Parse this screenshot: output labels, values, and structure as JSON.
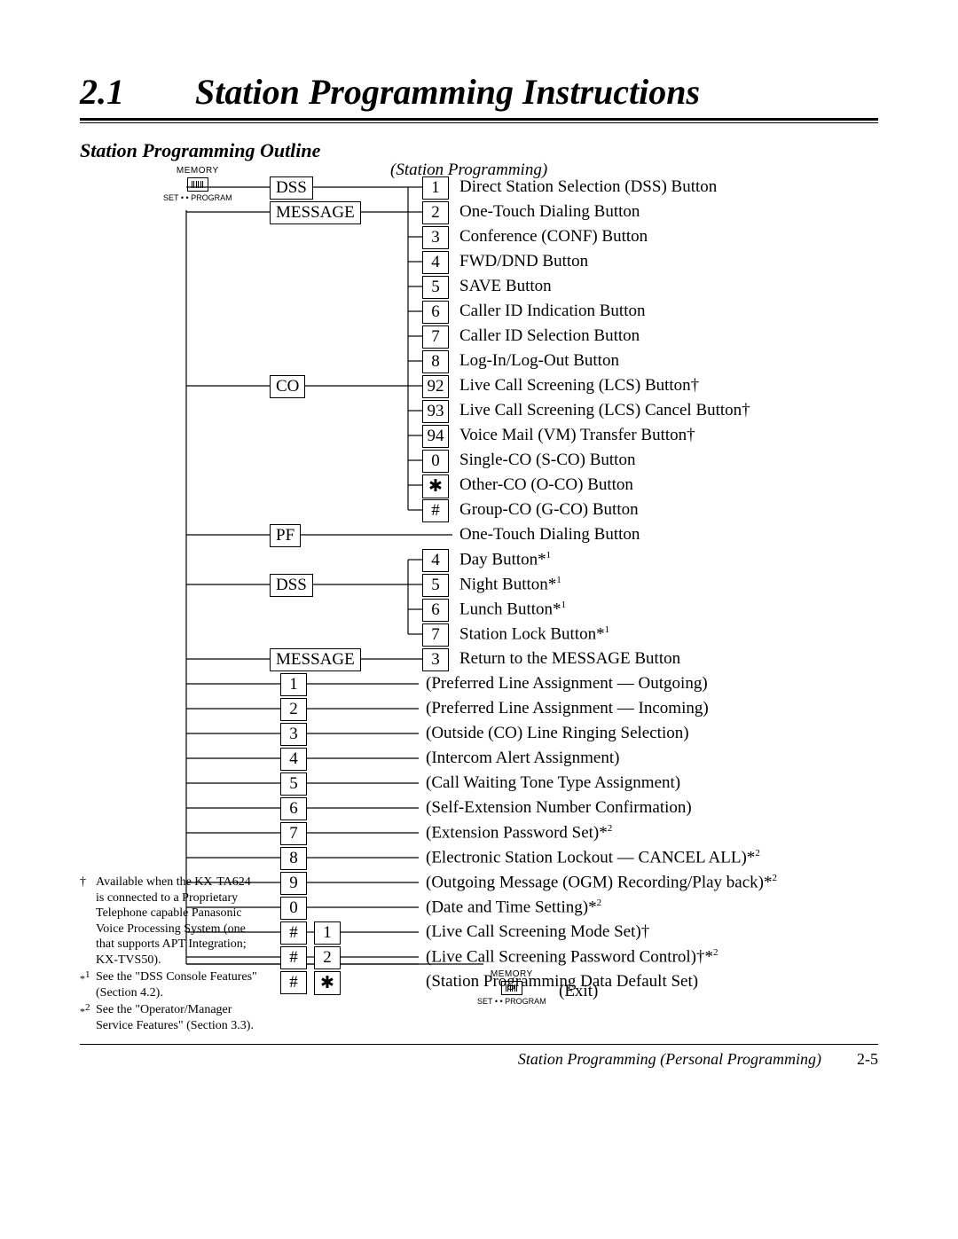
{
  "section_number": "2.1",
  "section_title": "Station Programming Instructions",
  "subheading": "Station Programming Outline",
  "tree_heading": "(Station Programming)",
  "memory_label": "MEMORY",
  "memory_sub": "SET • • PROGRAM",
  "exit_label": "(Exit)",
  "branch_labels": {
    "dss": "DSS",
    "message": "MESSAGE",
    "co": "CO",
    "pf": "PF",
    "dss2": "DSS",
    "message2": "MESSAGE"
  },
  "group1": [
    {
      "code": "1",
      "text": "Direct Station Selection (DSS) Button"
    },
    {
      "code": "2",
      "text": "One-Touch Dialing Button"
    },
    {
      "code": "3",
      "text": "Conference (CONF) Button"
    },
    {
      "code": "4",
      "text": "FWD/DND Button"
    },
    {
      "code": "5",
      "text": "SAVE Button"
    },
    {
      "code": "6",
      "text": "Caller ID Indication Button"
    },
    {
      "code": "7",
      "text": "Caller ID Selection Button"
    },
    {
      "code": "8",
      "text": "Log-In/Log-Out Button"
    },
    {
      "code": "92",
      "text": "Live Call Screening (LCS) Button†"
    },
    {
      "code": "93",
      "text": "Live Call Screening (LCS) Cancel Button†"
    },
    {
      "code": "94",
      "text": "Voice Mail (VM) Transfer Button†"
    },
    {
      "code": "0",
      "text": "Single-CO (S-CO) Button"
    },
    {
      "code": "✱",
      "text": "Other-CO (O-CO) Button"
    },
    {
      "code": "#",
      "text": "Group-CO (G-CO) Button"
    }
  ],
  "pf_text": "One-Touch Dialing Button",
  "group_dss2": [
    {
      "code": "4",
      "text": "Day Button*",
      "sup": "1"
    },
    {
      "code": "5",
      "text": "Night Button*",
      "sup": "1"
    },
    {
      "code": "6",
      "text": "Lunch Button*",
      "sup": "1"
    },
    {
      "code": "7",
      "text": "Station Lock Button*",
      "sup": "1"
    }
  ],
  "message2": {
    "code": "3",
    "text": "Return to the MESSAGE Button"
  },
  "numeric_items": [
    {
      "code": "1",
      "text": "(Preferred Line Assignment — Outgoing)"
    },
    {
      "code": "2",
      "text": "(Preferred Line Assignment — Incoming)"
    },
    {
      "code": "3",
      "text": "(Outside (CO) Line Ringing Selection)"
    },
    {
      "code": "4",
      "text": "(Intercom Alert Assignment)"
    },
    {
      "code": "5",
      "text": "(Call Waiting Tone Type Assignment)"
    },
    {
      "code": "6",
      "text": "(Self-Extension Number Confirmation)"
    },
    {
      "code": "7",
      "text": "(Extension Password Set)*",
      "sup": "2"
    },
    {
      "code": "8",
      "text": "(Electronic Station Lockout — CANCEL ALL)*",
      "sup": "2"
    },
    {
      "code": "9",
      "text": "(Outgoing Message (OGM) Recording/Play back)*",
      "sup": "2"
    },
    {
      "code": "0",
      "text": "(Date and Time Setting)*",
      "sup": "2"
    }
  ],
  "hash_items": [
    {
      "code1": "#",
      "code2": "1",
      "text": "(Live Call Screening Mode Set)†"
    },
    {
      "code1": "#",
      "code2": "2",
      "text": "(Live Call Screening Password Control)†*",
      "sup": "2"
    },
    {
      "code1": "#",
      "code2": "✱",
      "text": "(Station Programming Data Default Set)"
    }
  ],
  "footnotes": [
    {
      "mark": "†",
      "text": "Available when the KX-TA624 is connected to a Proprietary Telephone capable Panasonic Voice Processing System (one that supports APT Integration; KX-TVS50)."
    },
    {
      "mark": "*1",
      "text": "See the \"DSS Console Features\" (Section 4.2)."
    },
    {
      "mark": "*2",
      "text": "See the \"Operator/Manager Service Features\" (Section 3.3)."
    }
  ],
  "footer_title": "Station Programming (Personal Programming)",
  "footer_page": "2-5"
}
